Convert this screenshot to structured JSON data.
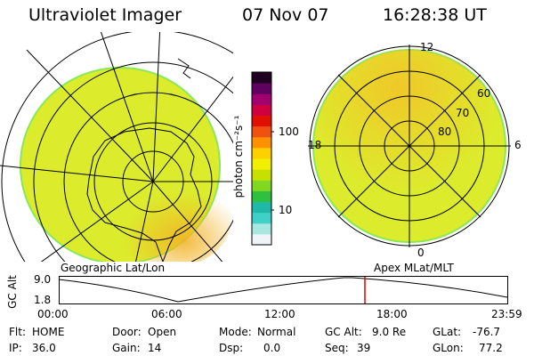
{
  "header": {
    "instrument": "Ultraviolet Imager",
    "date": "07 Nov 07",
    "time": "16:28:38 UT"
  },
  "left_map": {
    "caption": "Geographic Lat/Lon"
  },
  "right_map": {
    "caption": "Apex MLat/MLT",
    "mlt_labels": {
      "top": "12",
      "left": "18",
      "right": "6",
      "bottom": "0"
    },
    "lat_labels": [
      "60",
      "70",
      "80"
    ]
  },
  "colorbar": {
    "unit_label": "photon cm⁻²s⁻¹",
    "ticks": [
      "100",
      "10"
    ],
    "scale": "log",
    "colors": [
      "#f0f4f8",
      "#a8e8e0",
      "#40d0c8",
      "#20b8a8",
      "#30c040",
      "#80d820",
      "#c8e000",
      "#f0f000",
      "#ffd000",
      "#ff9000",
      "#f05010",
      "#e01000",
      "#d00040",
      "#a00070",
      "#600060",
      "#200020"
    ]
  },
  "altitude_plot": {
    "ylabel": "GC Alt",
    "y_ticks": [
      "9.0",
      "1.8"
    ],
    "x_ticks": [
      "00:00",
      "06:00",
      "12:00",
      "18:00",
      "23:59"
    ],
    "marker_time": "16:28:38",
    "marker_color": "#e00000"
  },
  "status": {
    "flt_label": "Flt:",
    "flt_value": "HOME",
    "door_label": "Door:",
    "door_value": "Open",
    "mode_label": "Mode:",
    "mode_value": "Normal",
    "gcalt_label": "GC Alt:",
    "gcalt_value": "9.0 Re",
    "glat_label": "GLat:",
    "glat_value": "-76.7",
    "ip_label": "IP:",
    "ip_value": "36.0",
    "gain_label": "Gain:",
    "gain_value": "14",
    "dsp_label": "Dsp:",
    "dsp_value": "0.0",
    "seq_label": "Seq:",
    "seq_value": "39",
    "glon_label": "GLon:",
    "glon_value": "77.2"
  },
  "palette": {
    "disk_main": "#dcec2c",
    "disk_warm": "#f2c428",
    "disk_rim": "#88e858"
  }
}
